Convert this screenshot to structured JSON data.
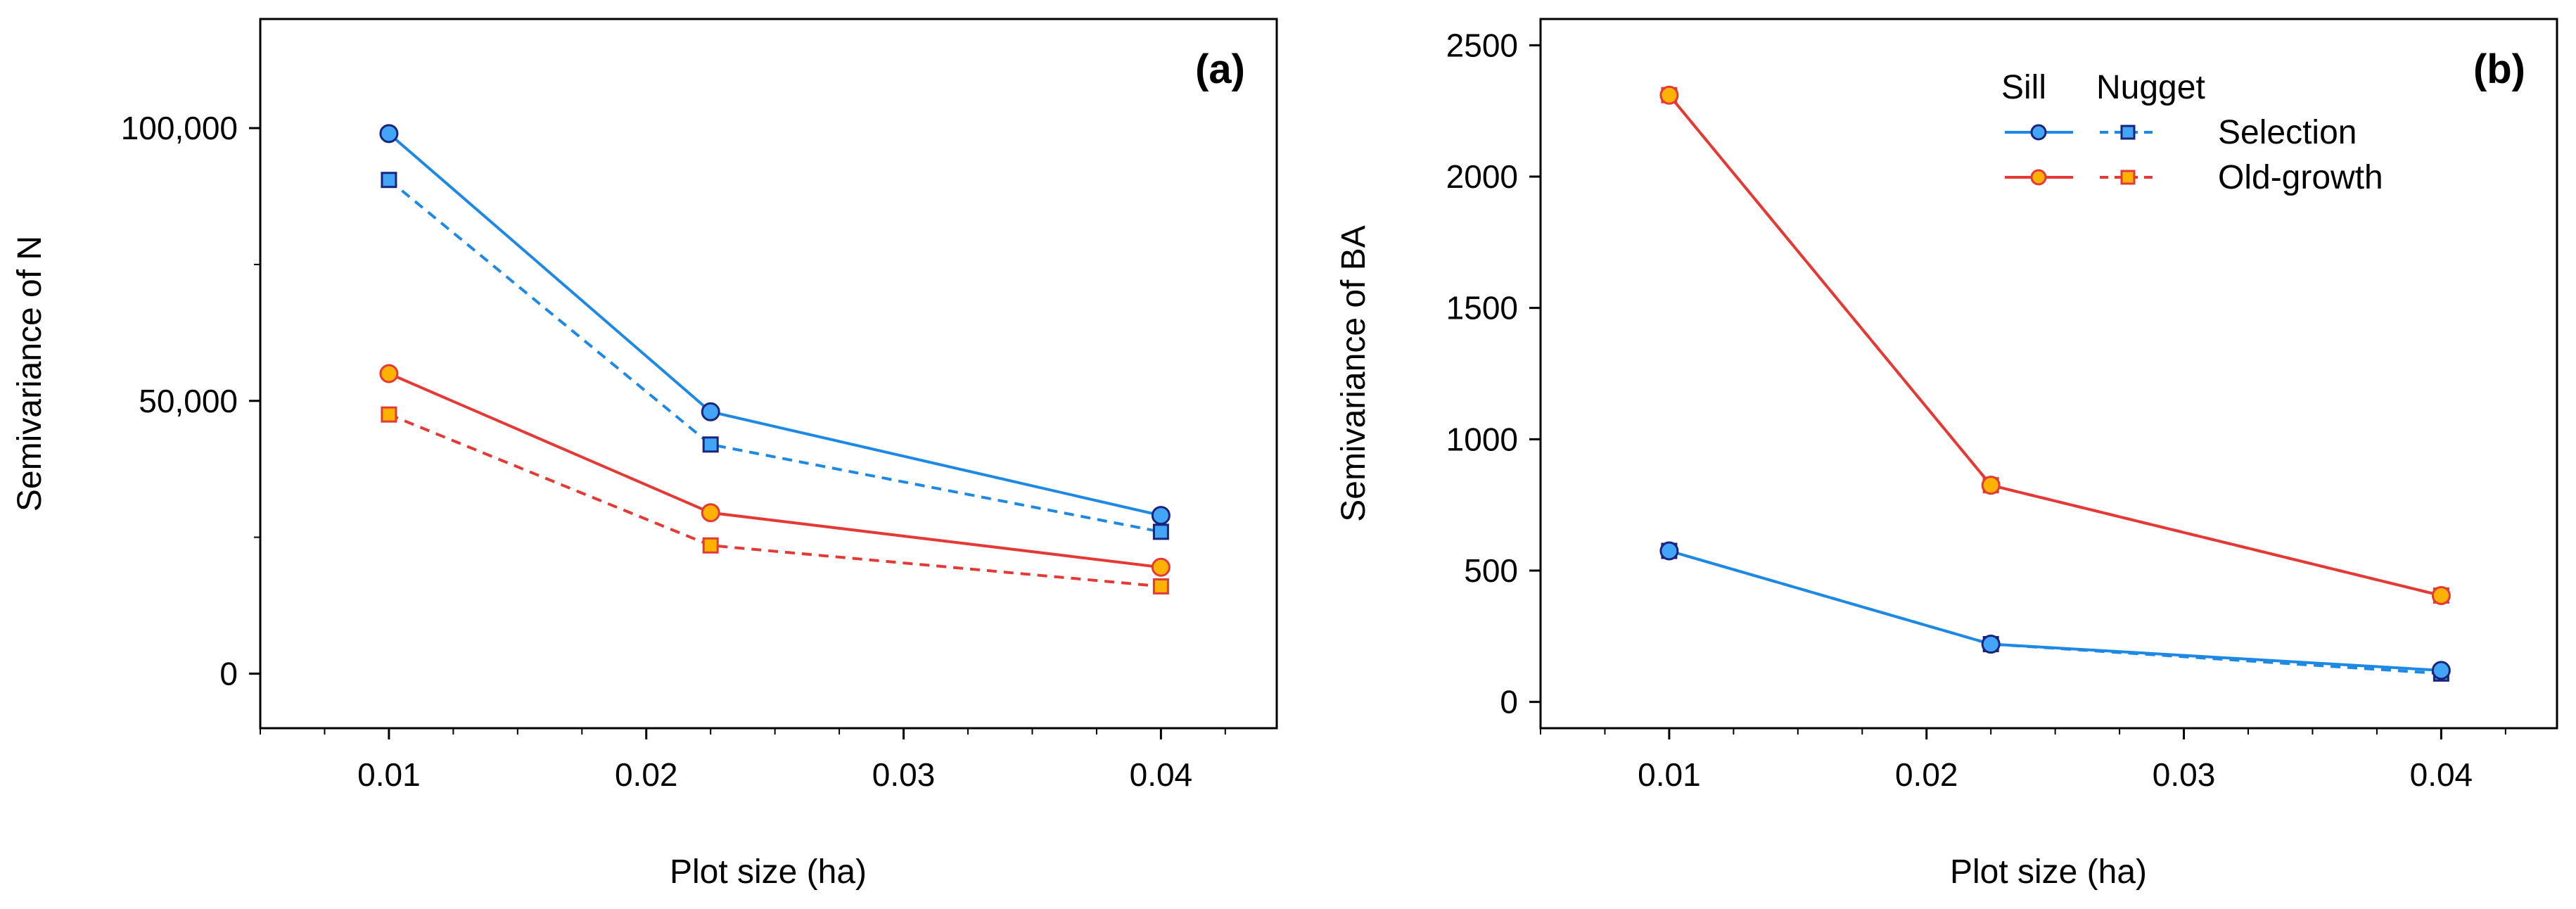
{
  "colors": {
    "selection_line": "#1E88E5",
    "selection_marker": "#42A5F5",
    "selection_marker_edge": "#1A237E",
    "oldgrowth_line": "#E53935",
    "oldgrowth_marker": "#FFB300",
    "oldgrowth_marker_edge": "#E53935"
  },
  "chart_data": [
    {
      "type": "line",
      "panel_label": "(a)",
      "xlabel": "Plot size (ha)",
      "ylabel": "Semivariance of N",
      "xlim": [
        0.005,
        0.0445
      ],
      "ylim": [
        -10000,
        120000
      ],
      "x_ticks": [
        0.01,
        0.02,
        0.03,
        0.04
      ],
      "x_tick_labels": [
        "0.01",
        "0.02",
        "0.03",
        "0.04"
      ],
      "y_ticks": [
        0,
        50000,
        100000
      ],
      "y_tick_labels": [
        "0",
        "50,000",
        "100,000"
      ],
      "x": [
        0.01,
        0.0225,
        0.04
      ],
      "series": [
        {
          "name": "Selection Sill",
          "group": "selection",
          "kind": "sill",
          "values": [
            99000,
            48000,
            29000
          ]
        },
        {
          "name": "Selection Nugget",
          "group": "selection",
          "kind": "nugget",
          "values": [
            90500,
            42000,
            26000
          ]
        },
        {
          "name": "Old-growth Sill",
          "group": "oldgrowth",
          "kind": "sill",
          "values": [
            55000,
            29500,
            19500
          ]
        },
        {
          "name": "Old-growth Nugget",
          "group": "oldgrowth",
          "kind": "nugget",
          "values": [
            47500,
            23500,
            16000
          ]
        }
      ]
    },
    {
      "type": "line",
      "panel_label": "(b)",
      "xlabel": "Plot size (ha)",
      "ylabel": "Semivariance of BA",
      "xlim": [
        0.005,
        0.0445
      ],
      "ylim": [
        -100,
        2600
      ],
      "x_ticks": [
        0.01,
        0.02,
        0.03,
        0.04
      ],
      "x_tick_labels": [
        "0.01",
        "0.02",
        "0.03",
        "0.04"
      ],
      "y_ticks": [
        0,
        500,
        1000,
        1500,
        2000,
        2500
      ],
      "y_tick_labels": [
        "0",
        "500",
        "1000",
        "1500",
        "2000",
        "2500"
      ],
      "x": [
        0.01,
        0.0225,
        0.04
      ],
      "series": [
        {
          "name": "Selection Sill",
          "group": "selection",
          "kind": "sill",
          "values": [
            575,
            220,
            120
          ]
        },
        {
          "name": "Selection Nugget",
          "group": "selection",
          "kind": "nugget",
          "values": [
            575,
            220,
            108
          ]
        },
        {
          "name": "Old-growth Sill",
          "group": "oldgrowth",
          "kind": "sill",
          "values": [
            2310,
            825,
            405
          ]
        },
        {
          "name": "Old-growth Nugget",
          "group": "oldgrowth",
          "kind": "nugget",
          "values": [
            2310,
            825,
            405
          ]
        }
      ],
      "legend": {
        "column_headers": [
          "Sill",
          "Nugget"
        ],
        "entries": [
          "Selection",
          "Old-growth"
        ],
        "placement": "top-right"
      }
    }
  ]
}
